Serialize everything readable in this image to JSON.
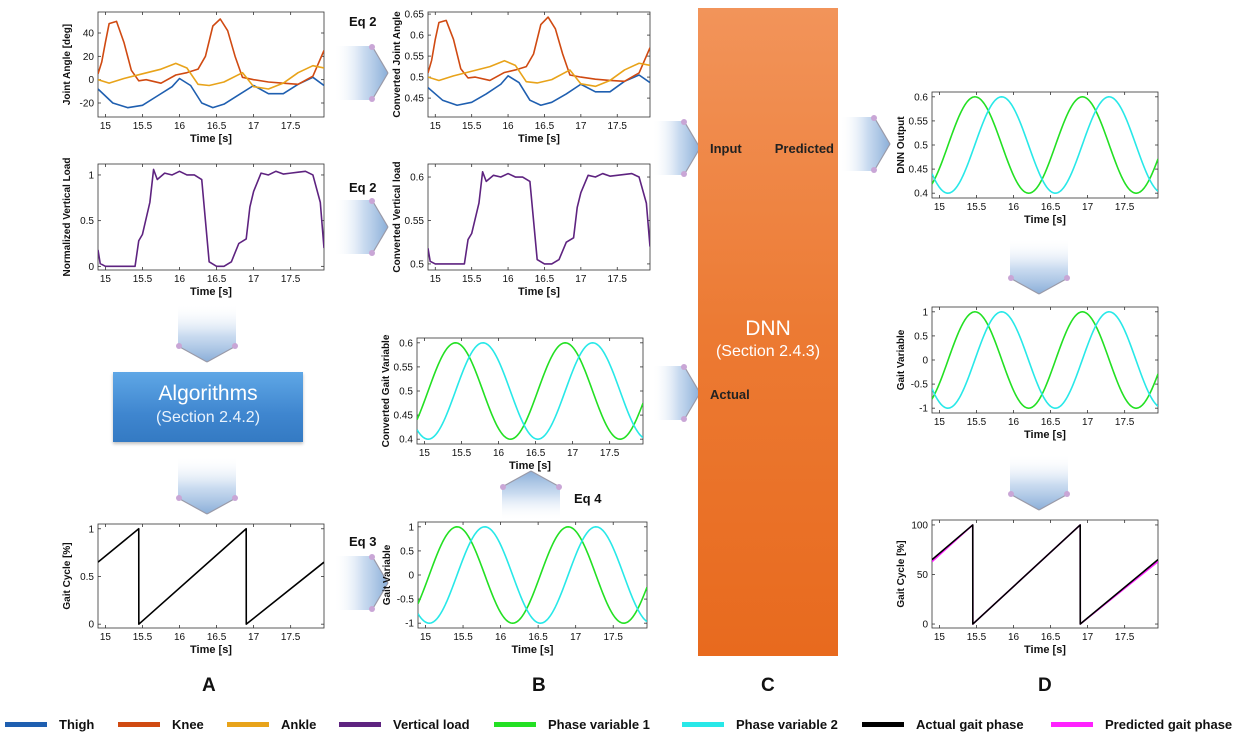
{
  "colors": {
    "thigh": "#1f5fb0",
    "knee": "#d04a12",
    "ankle": "#e8a31a",
    "load": "#5e2380",
    "phase1": "#23e023",
    "phase2": "#28e8e8",
    "actual": "#000000",
    "predicted": "#ff22ff"
  },
  "panels": {
    "A": "A",
    "B": "B",
    "C": "C",
    "D": "D"
  },
  "equations": {
    "eq2_top": "Eq 2",
    "eq2_mid": "Eq 2",
    "eq3": "Eq 3",
    "eq4": "Eq 4"
  },
  "algorithms": {
    "title": "Algorithms",
    "section": "(Section 2.4.2)"
  },
  "dnn": {
    "title": "DNN",
    "section": "(Section 2.4.3)",
    "input": "Input",
    "predicted": "Predicted",
    "actual": "Actual"
  },
  "legend": [
    {
      "label": "Thigh",
      "color": "#1f5fb0"
    },
    {
      "label": "Knee",
      "color": "#d04a12"
    },
    {
      "label": "Ankle",
      "color": "#e8a31a"
    },
    {
      "label": "Vertical load",
      "color": "#5e2380"
    },
    {
      "label": "Phase variable 1",
      "color": "#23e023"
    },
    {
      "label": "Phase variable 2",
      "color": "#28e8e8"
    },
    {
      "label": "Actual gait phase",
      "color": "#000000"
    },
    {
      "label": "Predicted gait phase",
      "color": "#ff22ff"
    }
  ],
  "chart_data": [
    {
      "id": "joint",
      "type": "line",
      "xlabel": "Time [s]",
      "ylabel": "Joint Angle [deg]",
      "xlim": [
        14.9,
        17.95
      ],
      "xticks": [
        15,
        15.5,
        16,
        16.5,
        17,
        17.5
      ],
      "ylim": [
        -32,
        58
      ],
      "yticks": [
        -20,
        0,
        20,
        40
      ],
      "series": [
        {
          "name": "Thigh",
          "color": "#1f5fb0",
          "x": [
            14.9,
            15.1,
            15.3,
            15.5,
            15.7,
            15.9,
            16.0,
            16.15,
            16.3,
            16.45,
            16.6,
            16.8,
            17.0,
            17.2,
            17.4,
            17.6,
            17.8,
            17.95
          ],
          "y": [
            -8,
            -20,
            -24,
            -22,
            -14,
            -6,
            1,
            -5,
            -20,
            -24,
            -21,
            -13,
            -5,
            -12,
            -12,
            -4,
            2,
            -5
          ]
        },
        {
          "name": "Knee",
          "color": "#d04a12",
          "x": [
            14.9,
            14.95,
            15.0,
            15.05,
            15.15,
            15.25,
            15.35,
            15.45,
            15.55,
            15.75,
            15.95,
            16.1,
            16.25,
            16.35,
            16.45,
            16.55,
            16.65,
            16.75,
            16.85,
            17.0,
            17.2,
            17.4,
            17.6,
            17.8,
            17.95
          ],
          "y": [
            5,
            15,
            32,
            48,
            50,
            32,
            8,
            -1,
            0,
            -3,
            4,
            6,
            9,
            20,
            46,
            52,
            42,
            20,
            2,
            0,
            -2,
            -3,
            -4,
            3,
            25
          ]
        },
        {
          "name": "Ankle",
          "color": "#e8a31a",
          "x": [
            14.9,
            15.05,
            15.25,
            15.5,
            15.75,
            15.95,
            16.1,
            16.25,
            16.4,
            16.6,
            16.85,
            17.0,
            17.2,
            17.4,
            17.6,
            17.8,
            17.95
          ],
          "y": [
            0,
            -3,
            1,
            5,
            9,
            14,
            10,
            -4,
            -5,
            -2,
            6,
            -6,
            -8,
            -3,
            6,
            12,
            10
          ]
        }
      ]
    },
    {
      "id": "load",
      "type": "line",
      "xlabel": "Time [s]",
      "ylabel": "Normalized Vertical Load",
      "xlim": [
        14.9,
        17.95
      ],
      "xticks": [
        15,
        15.5,
        16,
        16.5,
        17,
        17.5
      ],
      "ylim": [
        -0.04,
        1.12
      ],
      "yticks": [
        0,
        0.5,
        1
      ],
      "series": [
        {
          "name": "Vertical load",
          "color": "#5e2380",
          "x": [
            14.9,
            14.93,
            15.0,
            15.2,
            15.4,
            15.45,
            15.5,
            15.6,
            15.65,
            15.7,
            15.8,
            15.9,
            16.0,
            16.1,
            16.2,
            16.3,
            16.35,
            16.4,
            16.5,
            16.6,
            16.7,
            16.8,
            16.9,
            16.95,
            17.0,
            17.1,
            17.2,
            17.3,
            17.4,
            17.5,
            17.6,
            17.7,
            17.8,
            17.9,
            17.95
          ],
          "y": [
            0.18,
            0.03,
            0,
            0,
            0,
            0.28,
            0.35,
            0.7,
            1.06,
            0.95,
            1.02,
            1.0,
            1.04,
            1.0,
            1.0,
            0.95,
            0.5,
            0.05,
            0,
            0,
            0.05,
            0.25,
            0.3,
            0.65,
            0.82,
            1.02,
            1.0,
            1.04,
            1.01,
            1.02,
            1.03,
            1.04,
            1.0,
            0.7,
            0.2
          ]
        }
      ]
    },
    {
      "id": "gaitA",
      "type": "line",
      "xlabel": "Time [s]",
      "ylabel": "Gait Cycle [%]",
      "xlim": [
        14.9,
        17.95
      ],
      "xticks": [
        15,
        15.5,
        16,
        16.5,
        17,
        17.5
      ],
      "ylim": [
        -0.04,
        1.05
      ],
      "yticks": [
        0,
        0.5,
        1
      ],
      "series": [
        {
          "name": "Actual gait phase",
          "color": "#000000",
          "x": [
            14.9,
            15.45,
            15.451,
            16.9,
            16.901,
            17.95
          ],
          "y": [
            0.65,
            1.0,
            0.0,
            1.0,
            0.0,
            0.65
          ]
        }
      ]
    },
    {
      "id": "convJoint",
      "type": "line",
      "xlabel": "Time [s]",
      "ylabel": "Converted Joint Angle",
      "xlim": [
        14.9,
        17.95
      ],
      "xticks": [
        15,
        15.5,
        16,
        16.5,
        17,
        17.5
      ],
      "ylim": [
        0.405,
        0.655
      ],
      "yticks": [
        0.45,
        0.5,
        0.55,
        0.6,
        0.65
      ],
      "series": [
        {
          "name": "Thigh",
          "color": "#1f5fb0",
          "x": [
            14.9,
            15.1,
            15.3,
            15.5,
            15.7,
            15.9,
            16.0,
            16.15,
            16.3,
            16.45,
            16.6,
            16.8,
            17.0,
            17.2,
            17.4,
            17.6,
            17.8,
            17.95
          ],
          "y": [
            0.475,
            0.445,
            0.433,
            0.44,
            0.46,
            0.483,
            0.503,
            0.487,
            0.445,
            0.433,
            0.44,
            0.46,
            0.483,
            0.465,
            0.465,
            0.49,
            0.505,
            0.487
          ]
        },
        {
          "name": "Knee",
          "color": "#d04a12",
          "x": [
            14.9,
            14.95,
            15.0,
            15.05,
            15.15,
            15.25,
            15.35,
            15.45,
            15.55,
            15.75,
            15.95,
            16.1,
            16.25,
            16.35,
            16.45,
            16.55,
            16.65,
            16.75,
            16.85,
            17.0,
            17.2,
            17.4,
            17.6,
            17.8,
            17.95
          ],
          "y": [
            0.51,
            0.54,
            0.59,
            0.63,
            0.635,
            0.59,
            0.52,
            0.498,
            0.5,
            0.492,
            0.511,
            0.517,
            0.525,
            0.555,
            0.625,
            0.643,
            0.615,
            0.555,
            0.505,
            0.5,
            0.495,
            0.492,
            0.49,
            0.51,
            0.57
          ]
        },
        {
          "name": "Ankle",
          "color": "#e8a31a",
          "x": [
            14.9,
            15.05,
            15.25,
            15.5,
            15.75,
            15.95,
            16.1,
            16.25,
            16.4,
            16.6,
            16.85,
            17.0,
            17.2,
            17.4,
            17.6,
            17.8,
            17.95
          ],
          "y": [
            0.5,
            0.492,
            0.503,
            0.514,
            0.525,
            0.539,
            0.528,
            0.489,
            0.486,
            0.494,
            0.517,
            0.484,
            0.478,
            0.492,
            0.517,
            0.533,
            0.528
          ]
        }
      ]
    },
    {
      "id": "convLoad",
      "type": "line",
      "xlabel": "Time [s]",
      "ylabel": "Converted Vertical load",
      "xlim": [
        14.9,
        17.95
      ],
      "xticks": [
        15,
        15.5,
        16,
        16.5,
        17,
        17.5
      ],
      "ylim": [
        0.493,
        0.615
      ],
      "yticks": [
        0.5,
        0.55,
        0.6
      ],
      "series": [
        {
          "name": "Vertical load",
          "color": "#5e2380",
          "x": [
            14.9,
            14.93,
            15.0,
            15.2,
            15.4,
            15.45,
            15.5,
            15.6,
            15.65,
            15.7,
            15.8,
            15.9,
            16.0,
            16.1,
            16.2,
            16.3,
            16.35,
            16.4,
            16.5,
            16.6,
            16.7,
            16.8,
            16.9,
            16.95,
            17.0,
            17.1,
            17.2,
            17.3,
            17.4,
            17.5,
            17.6,
            17.7,
            17.8,
            17.9,
            17.95
          ],
          "y": [
            0.518,
            0.503,
            0.5,
            0.5,
            0.5,
            0.528,
            0.535,
            0.57,
            0.606,
            0.595,
            0.602,
            0.6,
            0.604,
            0.6,
            0.6,
            0.595,
            0.55,
            0.505,
            0.5,
            0.5,
            0.505,
            0.525,
            0.53,
            0.565,
            0.582,
            0.602,
            0.6,
            0.604,
            0.601,
            0.602,
            0.603,
            0.604,
            0.6,
            0.57,
            0.52
          ]
        }
      ]
    },
    {
      "id": "convGait",
      "type": "line",
      "xlabel": "Time [s]",
      "ylabel": "Converted Gait Variable",
      "xlim": [
        14.9,
        17.95
      ],
      "xticks": [
        15,
        15.5,
        16,
        16.5,
        17,
        17.5
      ],
      "ylim": [
        0.39,
        0.61
      ],
      "yticks": [
        0.4,
        0.45,
        0.5,
        0.55,
        0.6
      ],
      "series": [
        {
          "name": "Phase variable 1",
          "color": "#23e023",
          "kind": "sin",
          "t0": 15.42,
          "period": 1.48,
          "mid": 0.5,
          "amp": 0.1,
          "x": [
            14.9,
            17.95
          ]
        },
        {
          "name": "Phase variable 2",
          "color": "#28e8e8",
          "kind": "sin",
          "t0": 15.79,
          "period": 1.48,
          "mid": 0.5,
          "amp": 0.1,
          "x": [
            14.9,
            17.95
          ]
        }
      ]
    },
    {
      "id": "gaitVarB",
      "type": "line",
      "xlabel": "Time [s]",
      "ylabel": "Gait Variable",
      "xlim": [
        14.9,
        17.95
      ],
      "xticks": [
        15,
        15.5,
        16,
        16.5,
        17,
        17.5
      ],
      "ylim": [
        -1.1,
        1.1
      ],
      "yticks": [
        -1,
        -0.5,
        0,
        0.5,
        1
      ],
      "series": [
        {
          "name": "Phase variable 1",
          "color": "#23e023",
          "kind": "sin",
          "t0": 15.42,
          "period": 1.48,
          "mid": 0,
          "amp": 1,
          "x": [
            14.9,
            17.95
          ]
        },
        {
          "name": "Phase variable 2",
          "color": "#28e8e8",
          "kind": "sin",
          "t0": 15.79,
          "period": 1.48,
          "mid": 0,
          "amp": 1,
          "x": [
            14.9,
            17.95
          ]
        }
      ]
    },
    {
      "id": "dnnOut",
      "type": "line",
      "xlabel": "Time [s]",
      "ylabel": "DNN Output",
      "xlim": [
        14.9,
        17.95
      ],
      "xticks": [
        15,
        15.5,
        16,
        16.5,
        17,
        17.5
      ],
      "ylim": [
        0.39,
        0.61
      ],
      "yticks": [
        0.4,
        0.45,
        0.5,
        0.55,
        0.6
      ],
      "series": [
        {
          "name": "Phase variable 1",
          "color": "#23e023",
          "kind": "sin",
          "t0": 15.48,
          "period": 1.45,
          "mid": 0.5,
          "amp": 0.1,
          "x": [
            14.9,
            17.95
          ]
        },
        {
          "name": "Phase variable 2",
          "color": "#28e8e8",
          "kind": "sin",
          "t0": 15.84,
          "period": 1.45,
          "mid": 0.5,
          "amp": 0.1,
          "x": [
            14.9,
            17.95
          ]
        }
      ]
    },
    {
      "id": "gaitVarD",
      "type": "line",
      "xlabel": "Time [s]",
      "ylabel": "Gait Variable",
      "xlim": [
        14.9,
        17.95
      ],
      "xticks": [
        15,
        15.5,
        16,
        16.5,
        17,
        17.5
      ],
      "ylim": [
        -1.1,
        1.1
      ],
      "yticks": [
        -1,
        -0.5,
        0,
        0.5,
        1
      ],
      "series": [
        {
          "name": "Phase variable 1",
          "color": "#23e023",
          "kind": "sin",
          "t0": 15.48,
          "period": 1.45,
          "mid": 0,
          "amp": 1,
          "x": [
            14.9,
            17.95
          ]
        },
        {
          "name": "Phase variable 2",
          "color": "#28e8e8",
          "kind": "sin",
          "t0": 15.84,
          "period": 1.45,
          "mid": 0,
          "amp": 1,
          "x": [
            14.9,
            17.95
          ]
        }
      ]
    },
    {
      "id": "gaitD",
      "type": "line",
      "xlabel": "Time [s]",
      "ylabel": "Gait Cycle [%]",
      "xlim": [
        14.9,
        17.95
      ],
      "xticks": [
        15,
        15.5,
        16,
        16.5,
        17,
        17.5
      ],
      "ylim": [
        -4,
        105
      ],
      "yticks": [
        0,
        50,
        100
      ],
      "series": [
        {
          "name": "Predicted gait phase",
          "color": "#ff22ff",
          "x": [
            14.9,
            15.45,
            15.451,
            16.9,
            16.901,
            17.95
          ],
          "y": [
            63,
            100,
            0,
            100,
            0,
            63
          ]
        },
        {
          "name": "Actual gait phase",
          "color": "#000000",
          "x": [
            14.9,
            15.45,
            15.451,
            16.9,
            16.901,
            17.95
          ],
          "y": [
            65,
            100,
            0,
            100,
            0,
            65
          ]
        }
      ]
    }
  ]
}
